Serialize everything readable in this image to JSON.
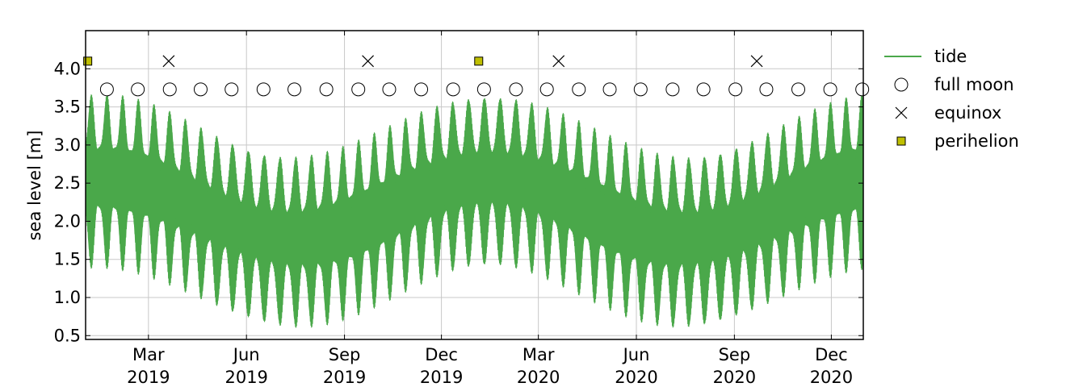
{
  "chart_data": {
    "type": "line",
    "title": "",
    "xlabel": "",
    "ylabel": "sea level [m]",
    "x_range": [
      "2019-01-01",
      "2020-12-31"
    ],
    "ylim": [
      0.45,
      4.5
    ],
    "y_ticks": [
      0.5,
      1.0,
      1.5,
      2.0,
      2.5,
      3.0,
      3.5,
      4.0
    ],
    "y_tick_labels": [
      "0.5",
      "1.0",
      "1.5",
      "2.0",
      "2.5",
      "3.0",
      "3.5",
      "4.0"
    ],
    "x_ticks": [
      {
        "date": "2019-03-01",
        "line1": "Mar",
        "line2": "2019"
      },
      {
        "date": "2019-06-01",
        "line1": "Jun",
        "line2": "2019"
      },
      {
        "date": "2019-09-01",
        "line1": "Sep",
        "line2": "2019"
      },
      {
        "date": "2019-12-01",
        "line1": "Dec",
        "line2": "2019"
      },
      {
        "date": "2020-03-01",
        "line1": "Mar",
        "line2": "2020"
      },
      {
        "date": "2020-06-01",
        "line1": "Jun",
        "line2": "2020"
      },
      {
        "date": "2020-09-01",
        "line1": "Sep",
        "line2": "2020"
      },
      {
        "date": "2020-12-01",
        "line1": "Dec",
        "line2": "2020"
      }
    ],
    "grid": true,
    "legend_position": "outside-right-top",
    "series": [
      {
        "name": "tide",
        "kind": "line",
        "color": "#4aa84a",
        "mean_level": 2.2,
        "annual_amplitude": 0.4,
        "spring_neap_range": [
          0.3,
          1.0
        ]
      },
      {
        "name": "full moon",
        "kind": "marker",
        "marker": "circle",
        "y": 3.73,
        "dates": [
          "2019-01-21",
          "2019-02-19",
          "2019-03-21",
          "2019-04-19",
          "2019-05-18",
          "2019-06-17",
          "2019-07-16",
          "2019-08-15",
          "2019-09-14",
          "2019-10-13",
          "2019-11-12",
          "2019-12-12",
          "2020-01-10",
          "2020-02-09",
          "2020-03-09",
          "2020-04-08",
          "2020-05-07",
          "2020-06-05",
          "2020-07-05",
          "2020-08-03",
          "2020-09-02",
          "2020-10-01",
          "2020-10-31",
          "2020-11-30",
          "2020-12-30"
        ]
      },
      {
        "name": "equinox",
        "kind": "marker",
        "marker": "x",
        "y": 4.1,
        "dates": [
          "2019-03-20",
          "2019-09-23",
          "2020-03-20",
          "2020-09-22"
        ]
      },
      {
        "name": "perihelion",
        "kind": "marker",
        "marker": "square",
        "color": "#bfbf00",
        "y": 4.1,
        "dates": [
          "2019-01-03",
          "2020-01-05"
        ]
      }
    ]
  }
}
